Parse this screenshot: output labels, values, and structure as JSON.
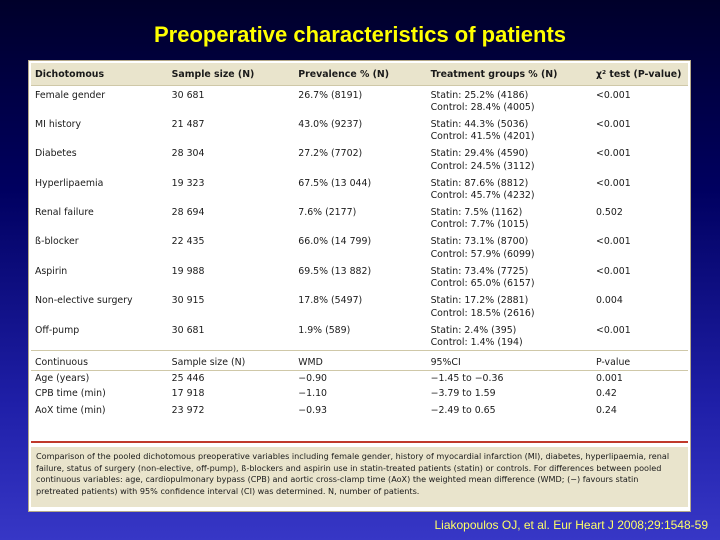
{
  "title": "Preoperative characteristics of patients",
  "table": {
    "headers": {
      "dichotomous": "Dichotomous",
      "sample_size": "Sample size (N)",
      "prevalence": "Prevalence % (N)",
      "treatment": "Treatment groups % (N)",
      "chi2": "χ² test (P-value)"
    },
    "rows": [
      {
        "label": "Female gender",
        "n": "30 681",
        "prev": "26.7% (8191)",
        "statin": "Statin: 25.2% (4186)",
        "control": "Control: 28.4% (4005)",
        "p": "<0.001"
      },
      {
        "label": "MI history",
        "n": "21 487",
        "prev": "43.0% (9237)",
        "statin": "Statin: 44.3% (5036)",
        "control": "Control: 41.5% (4201)",
        "p": "<0.001"
      },
      {
        "label": "Diabetes",
        "n": "28 304",
        "prev": "27.2% (7702)",
        "statin": "Statin: 29.4% (4590)",
        "control": "Control: 24.5% (3112)",
        "p": "<0.001"
      },
      {
        "label": "Hyperlipaemia",
        "n": "19 323",
        "prev": "67.5% (13 044)",
        "statin": "Statin: 87.6% (8812)",
        "control": "Control: 45.7% (4232)",
        "p": "<0.001"
      },
      {
        "label": "Renal failure",
        "n": "28 694",
        "prev": "7.6% (2177)",
        "statin": "Statin: 7.5% (1162)",
        "control": "Control: 7.7% (1015)",
        "p": "0.502"
      },
      {
        "label": "ß-blocker",
        "n": "22 435",
        "prev": "66.0% (14 799)",
        "statin": "Statin: 73.1% (8700)",
        "control": "Control: 57.9% (6099)",
        "p": "<0.001"
      },
      {
        "label": "Aspirin",
        "n": "19 988",
        "prev": "69.5% (13 882)",
        "statin": "Statin: 73.4% (7725)",
        "control": "Control: 65.0% (6157)",
        "p": "<0.001"
      },
      {
        "label": "Non-elective surgery",
        "n": "30 915",
        "prev": "17.8% (5497)",
        "statin": "Statin: 17.2% (2881)",
        "control": "Control: 18.5% (2616)",
        "p": "0.004"
      },
      {
        "label": "Off-pump",
        "n": "30 681",
        "prev": "1.9% (589)",
        "statin": "Statin: 2.4% (395)",
        "control": "Control: 1.4% (194)",
        "p": "<0.001"
      }
    ],
    "continuous_header": {
      "label": "Continuous",
      "sample_size": "Sample size (N)",
      "wmd": "WMD",
      "ci": "95%CI",
      "p": "P-value"
    },
    "continuous_rows": [
      {
        "label": "Age (years)",
        "n": "25 446",
        "wmd": "−0.90",
        "ci": "−1.45 to −0.36",
        "p": "0.001"
      },
      {
        "label": "CPB time (min)",
        "n": "17 918",
        "wmd": "−1.10",
        "ci": "−3.79 to 1.59",
        "p": "0.42"
      },
      {
        "label": "AoX time (min)",
        "n": "23 972",
        "wmd": "−0.93",
        "ci": "−2.49 to 0.65",
        "p": "0.24"
      }
    ],
    "caption": "Comparison of the pooled dichotomous preoperative variables including female gender, history of myocardial infarction (MI), diabetes, hyperlipaemia, renal failure, status of surgery (non-elective, off-pump), ß-blockers and aspirin use in statin-treated patients (statin) or controls. For differences between pooled continuous variables: age, cardiopulmonary bypass (CPB) and aortic cross-clamp time (AoX) the weighted mean difference (WMD; (−) favours statin pretreated patients) with 95% confidence interval (CI) was determined. N, number of patients."
  },
  "citation": "Liakopoulos OJ, et al. Eur Heart J 2008;29:1548-59",
  "colors": {
    "title": "#ffff00",
    "citation": "#ffff66",
    "header_bg": "#e9e4cc",
    "red_rule": "#c0392b"
  }
}
